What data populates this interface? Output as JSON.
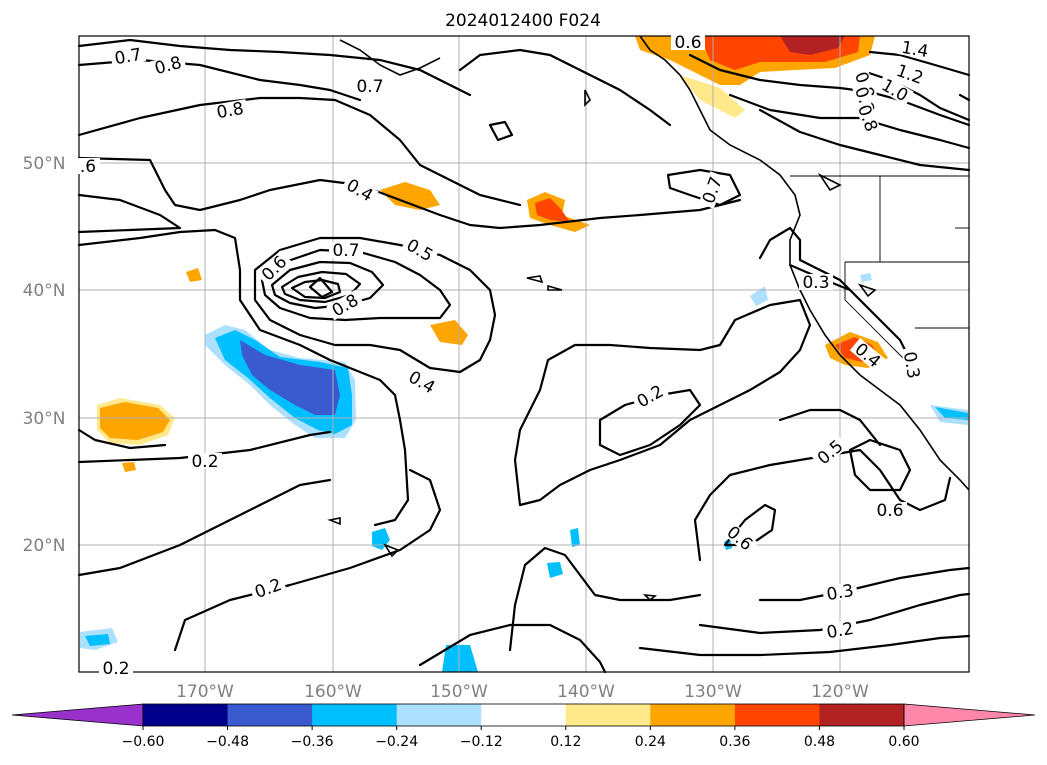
{
  "title": "2024012400 F024",
  "map": {
    "lat_range": [
      10,
      60
    ],
    "lon_range": [
      -180,
      -110
    ],
    "lat_ticks": [
      "20°N",
      "30°N",
      "40°N",
      "50°N"
    ],
    "lon_ticks": [
      "170°W",
      "160°W",
      "150°W",
      "140°W",
      "130°W",
      "120°W"
    ],
    "grid": true
  },
  "contour_labels": [
    "0.7",
    "0.8",
    "0.8",
    "0.7",
    ".6",
    "0.4",
    "0.7",
    "0.5",
    "0.6",
    "0.8",
    "0.4",
    "0.2",
    "0.2",
    "0.2",
    "0.2",
    "0.5",
    "0.6",
    "0.6",
    "0.3",
    "0.2",
    "0.3",
    "0.4",
    "0.3",
    "0.7",
    "0.6",
    "1.4",
    "1.2",
    "1.0",
    "0.8",
    "0.8",
    "0.8"
  ],
  "colorbar": {
    "ticks": [
      "−0.60",
      "−0.48",
      "−0.36",
      "−0.24",
      "−0.12",
      "0.12",
      "0.24",
      "0.36",
      "0.48",
      "0.60"
    ],
    "colors": [
      "#9932cc",
      "#00008b",
      "#3a5bd0",
      "#00bfff",
      "#addfff",
      "#ffffff",
      "#ffe98a",
      "#ffa500",
      "#ff4500",
      "#b22222",
      "#ff88aa"
    ],
    "extend": "both"
  }
}
